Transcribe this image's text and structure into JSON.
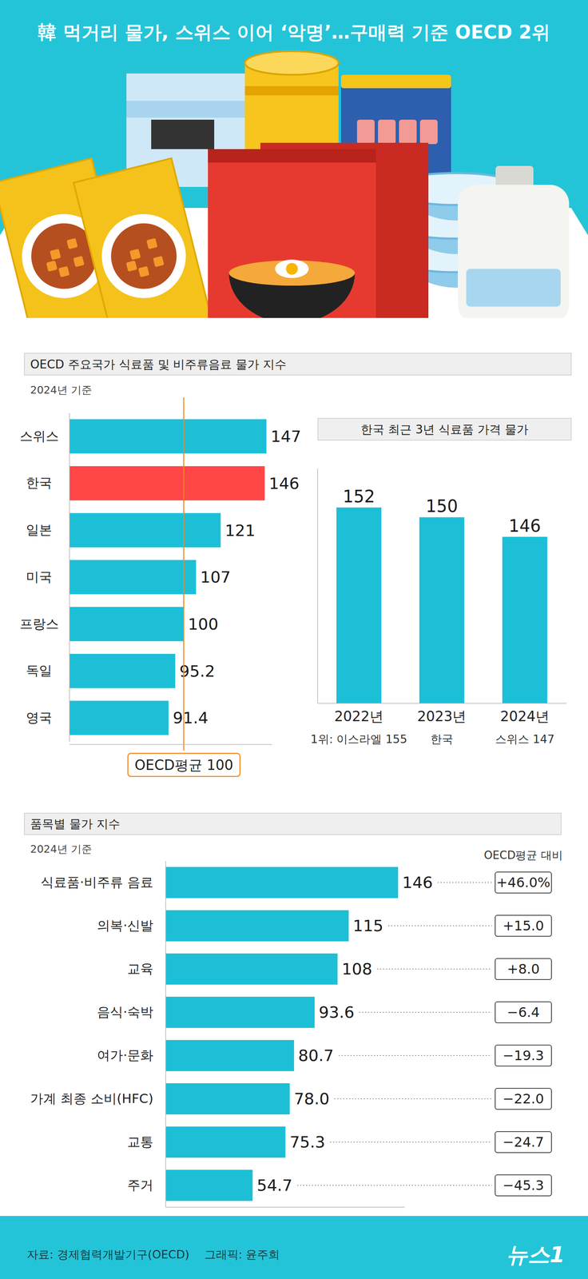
{
  "header": {
    "title": "韓 먹거리 물가, 스위스 이어 ‘악명’…구매력 기준 OECD 2위"
  },
  "chart_data": [
    {
      "type": "bar",
      "orientation": "horizontal",
      "title": "OECD 주요국가 식료품 및 비주류음료 물가 지수",
      "subtitle": "2024년 기준",
      "categories": [
        "스위스",
        "한국",
        "일본",
        "미국",
        "프랑스",
        "독일",
        "영국"
      ],
      "values": [
        147,
        146,
        121,
        107,
        100,
        95.2,
        91.4
      ],
      "colors": [
        "#1dbfd6",
        "#ff4747",
        "#1dbfd6",
        "#1dbfd6",
        "#1dbfd6",
        "#1dbfd6",
        "#1dbfd6"
      ],
      "xlim": [
        35,
        150
      ],
      "xticks": [
        {
          "value": 100,
          "label": "OECD평균 100"
        }
      ],
      "grid": true,
      "data_labels": true
    },
    {
      "type": "bar",
      "title": "한국 최근 3년 식료품 가격 물가",
      "categories": [
        "2022년",
        "2023년",
        "2024년"
      ],
      "values": [
        152,
        150,
        146
      ],
      "annotations": [
        "1위: 이스라엘 155",
        "한국",
        "스위스 147"
      ],
      "color": "#1dbfd6",
      "ylim": [
        112,
        160
      ],
      "yticks": [],
      "grid": false,
      "data_labels": true,
      "tick_labels": "x"
    },
    {
      "type": "bar",
      "orientation": "horizontal",
      "title": "품목별 물가 지수",
      "subtitle": "2024년 기준",
      "categories": [
        "식료품·비주류 음료",
        "의복·신발",
        "교육",
        "음식·숙박",
        "여가·문화",
        "가계 최종 소비(HFC)",
        "교통",
        "주거"
      ],
      "values": [
        146,
        115,
        108,
        93.6,
        80.7,
        78.0,
        75.3,
        54.7
      ],
      "value_labels": [
        "146",
        "115",
        "108",
        "93.6",
        "80.7",
        "78.0",
        "75.3",
        "54.7"
      ],
      "oecd_diff_title": "OECD평균 대비",
      "oecd_diff": [
        46.0,
        15.0,
        8.0,
        -6.4,
        -19.3,
        -22.0,
        -24.7,
        -45.3
      ],
      "oecd_diff_labels": [
        "+46.0%",
        "+15.0",
        "+8.0",
        "−6.4",
        "−19.3",
        "−22.0",
        "−24.7",
        "−45.3"
      ],
      "color": "#1dbfd6",
      "xlim": [
        0,
        150
      ],
      "xticks": [],
      "grid": false,
      "data_labels": true,
      "tick_labels": "y"
    }
  ],
  "footer": {
    "source": "자료: 경제협력개발기구(OECD)",
    "credit": "그래픽: 윤주희",
    "logo": "뉴스1"
  }
}
